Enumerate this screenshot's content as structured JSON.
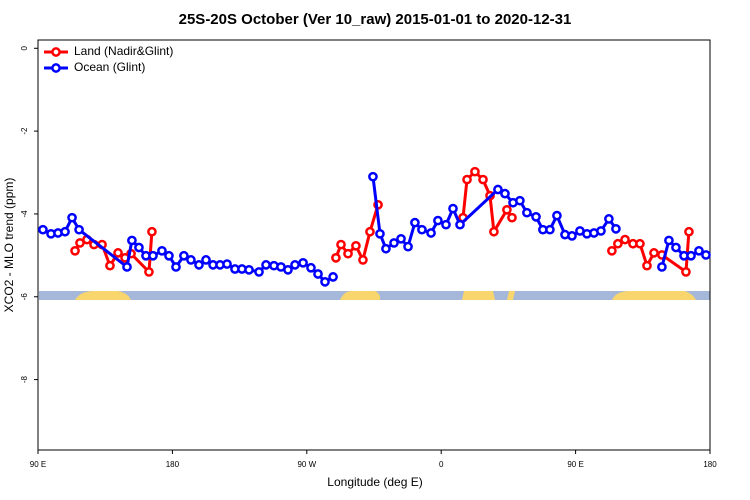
{
  "chart_data": {
    "type": "line",
    "title": "25S-20S October (Ver 10_raw)   2015-01-01 to 2020-12-31",
    "x_label": "Longitude (deg E)",
    "y_label": "XCO2 - MLO trend (ppm)",
    "xlim": [
      90,
      540
    ],
    "xticks": [
      {
        "value": 90,
        "label": "90 E"
      },
      180,
      {
        "value": 270,
        "label": "90 W"
      },
      {
        "value": 360,
        "label": "0"
      },
      {
        "value": 450,
        "label": "90 E"
      },
      {
        "value": 540,
        "label": "180"
      }
    ],
    "ylim": [
      -9.7,
      0.2
    ],
    "yticks": [
      0,
      -2,
      -4,
      -6,
      -8
    ],
    "legend": "top-left",
    "series": [
      {
        "name": "Land (Nadir&Glint)",
        "color": "#ff0000",
        "x": [
          114.8,
          118.1,
          122.8,
          127.5,
          132.9,
          138.2,
          143.6,
          148.3,
          152.3,
          164.3,
          166.3,
          250,
          289.5,
          292.9,
          297.6,
          302.9,
          307.6,
          312.3,
          317.7,
          340,
          374.6,
          377.3,
          382.6,
          388,
          392.7,
          395.3,
          404,
          407.4,
          450,
          474.3,
          478.3,
          483.1,
          488.4,
          493.1,
          497.8,
          502.5,
          507.8,
          523.9,
          525.9
        ],
        "values": [
          -4.89,
          -4.7,
          -4.62,
          -4.74,
          -4.74,
          -5.25,
          -4.94,
          -5.06,
          -4.96,
          -5.4,
          -4.43,
          null,
          -5.06,
          -4.74,
          -4.96,
          -4.77,
          -5.11,
          -4.43,
          -3.78,
          null,
          -4.09,
          -3.17,
          -2.98,
          -3.17,
          -3.56,
          -4.43,
          -3.9,
          -4.09,
          null,
          -4.89,
          -4.72,
          -4.62,
          -4.72,
          -4.72,
          -5.25,
          -4.94,
          -4.99,
          -5.4,
          -4.43
        ]
      },
      {
        "name": "Ocean (Glint)",
        "color": "#0000ff",
        "x": [
          93.3,
          98.7,
          103.4,
          108.1,
          112.8,
          117.5,
          149.6,
          152.9,
          157.6,
          162.3,
          167,
          173,
          177.7,
          182.4,
          187.7,
          192.4,
          197.8,
          202.5,
          207.2,
          211.9,
          216.6,
          221.9,
          226.6,
          231.3,
          238,
          242.7,
          248,
          252.7,
          257.4,
          262.1,
          267.5,
          272.8,
          277.5,
          282.2,
          287.6,
          300,
          314.3,
          319,
          323,
          328.4,
          333.1,
          337.8,
          342.4,
          347.1,
          353.2,
          357.8,
          363.2,
          367.9,
          372.6,
          398,
          402.7,
          408.1,
          412.7,
          417.4,
          423.5,
          428.1,
          432.8,
          437.5,
          442.9,
          447.6,
          452.9,
          457.6,
          462.3,
          467,
          472.3,
          477,
          492,
          507.8,
          512.5,
          517.2,
          522.6,
          527.3,
          532.6,
          537.3
        ],
        "values": [
          -4.38,
          -4.48,
          -4.46,
          -4.43,
          -4.09,
          -4.38,
          -5.28,
          -4.64,
          -4.81,
          -5.01,
          -5.01,
          -4.89,
          -5.01,
          -5.28,
          -5.01,
          -5.11,
          -5.23,
          -5.11,
          -5.23,
          -5.23,
          -5.21,
          -5.33,
          -5.33,
          -5.35,
          -5.4,
          -5.23,
          -5.25,
          -5.28,
          -5.35,
          -5.23,
          -5.18,
          -5.3,
          -5.45,
          -5.64,
          -5.52,
          null,
          -3.1,
          -4.48,
          -4.84,
          -4.7,
          -4.6,
          -4.79,
          -4.21,
          -4.38,
          -4.46,
          -4.16,
          -4.26,
          -3.87,
          -4.26,
          -3.41,
          -3.51,
          -3.73,
          -3.68,
          -3.97,
          -4.07,
          -4.38,
          -4.38,
          -4.04,
          -4.5,
          -4.53,
          -4.41,
          -4.48,
          -4.46,
          -4.41,
          -4.12,
          -4.36,
          null,
          -5.28,
          -4.64,
          -4.81,
          -5.01,
          -5.01,
          -4.89,
          -4.99
        ]
      }
    ]
  }
}
